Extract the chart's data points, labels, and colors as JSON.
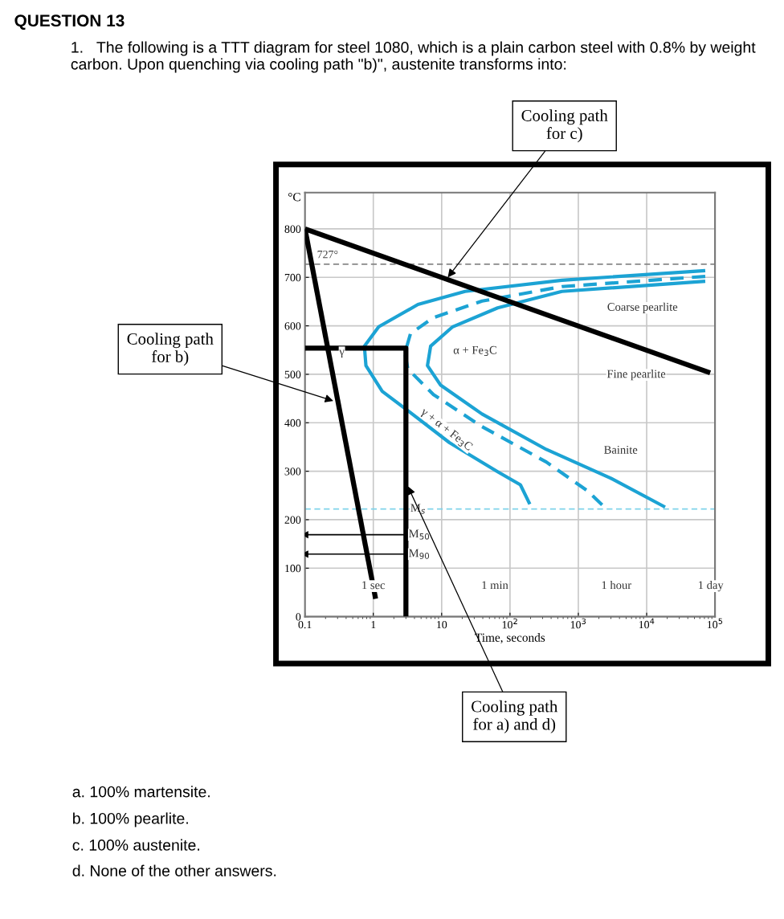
{
  "chart_data": {
    "type": "line",
    "title": "QUESTION 13",
    "subtitle": "1.   The following is a TTT diagram for steel 1080, which is a plain carbon steel with 0.8% by weight carbon. Upon quenching via cooling path \"b)\", austenite transforms into:",
    "ylabel": "°C",
    "xlabel": "Time, seconds",
    "log": "x",
    "grid": true,
    "xlim": [
      0.1,
      100000
    ],
    "xticks": [
      {
        "value": 0.1,
        "label": "0.1"
      },
      {
        "value": 1,
        "label": "1"
      },
      {
        "value": 10,
        "label": "10"
      },
      {
        "value": 100,
        "label": "10$^{2}$"
      },
      {
        "value": 1000,
        "label": "10$^{3}$"
      },
      {
        "value": 10000,
        "label": "10$^{4}$"
      },
      {
        "value": 100000,
        "label": "10$^{5}$"
      }
    ],
    "ylim": [
      0,
      875
    ],
    "yticks": [
      0,
      100,
      200,
      300,
      400,
      500,
      600,
      700,
      800
    ],
    "series": [
      {
        "color": "#1ca3d4",
        "line_style": "solid",
        "x": [
          72000,
          575,
          22,
          4.5,
          1.2,
          0.74,
          0.78,
          1.35,
          3.2,
          13,
          66,
          142,
          195
        ],
        "values": [
          714,
          694,
          671,
          644,
          598,
          558,
          518,
          465,
          425,
          359,
          299,
          272,
          232
        ]
      },
      {
        "color": "#1ca3d4",
        "line_style": "dashed",
        "x": [
          72000,
          575,
          39,
          7.6,
          3.5,
          2.9,
          3.2,
          7.6,
          39,
          340,
          1380,
          2400
        ],
        "values": [
          702,
          681,
          651,
          617,
          584,
          544,
          511,
          458,
          392,
          319,
          259,
          226
        ]
      },
      {
        "color": "#1ca3d4",
        "line_style": "solid",
        "x": [
          72000,
          575,
          66,
          14.5,
          6.9,
          6.2,
          9.6,
          39,
          340,
          2950,
          18600
        ],
        "values": [
          692,
          671,
          637,
          598,
          558,
          518,
          478,
          418,
          345,
          286,
          226
        ]
      },
      {
        "color": "#000000",
        "line_style": "solid",
        "x": [
          0.1,
          85000
        ],
        "values": [
          800,
          503
        ]
      },
      {
        "color": "#000000",
        "line_style": "solid",
        "x": [
          0.1,
          1.08
        ],
        "values": [
          800,
          37
        ]
      },
      {
        "color": "#000000",
        "line_style": "solid",
        "x": [
          0.1,
          3,
          3
        ],
        "values": [
          554,
          554,
          0
        ]
      },
      {
        "color": "#000000",
        "line_style": "solid",
        "x": [
          3,
          0.1
        ],
        "values": [
          169,
          169
        ]
      },
      {
        "color": "#000000",
        "line_style": "solid",
        "x": [
          3,
          0.1
        ],
        "values": [
          129,
          129
        ]
      }
    ],
    "ref_lines": [
      {
        "axis": "y",
        "value": 727,
        "label": "727°",
        "color": "#888888",
        "line_style": "dashed"
      },
      {
        "axis": "y",
        "value": 222,
        "color": "#7fd3ea",
        "line_style": "dashed"
      }
    ],
    "annotations": [
      {
        "text": "Cooling path\nfor c)",
        "x": 12.3,
        "y": 700
      },
      {
        "text": "Cooling path\nfor b)",
        "x": 0.26,
        "y": 445
      },
      {
        "text": "Cooling path\nfor a) and d)",
        "x": 3.2,
        "y": 269
      },
      "Coarse pearlite",
      "Fine pearlite",
      "Bainite",
      "α + Fe$_{3}$C",
      "γ + α + Fe$_{3}$C",
      "γ",
      {
        "text": "M$_{s}$",
        "x": 4.5,
        "y": 222
      },
      {
        "text": "M$_{50}$",
        "x": 4.7,
        "y": 169
      },
      {
        "text": "M$_{90}$",
        "x": 4.7,
        "y": 129
      },
      {
        "text": "1 sec",
        "x": 1,
        "y": 63
      },
      {
        "text": "1 min",
        "x": 60,
        "y": 63
      },
      {
        "text": "1 hour",
        "x": 3600,
        "y": 63
      },
      {
        "text": "1 day",
        "x": 86400,
        "y": 63
      },
      "a. 100% martensite.",
      "b. 100% pearlite.",
      "c. 100% austenite.",
      "d. None of the other answers."
    ]
  }
}
